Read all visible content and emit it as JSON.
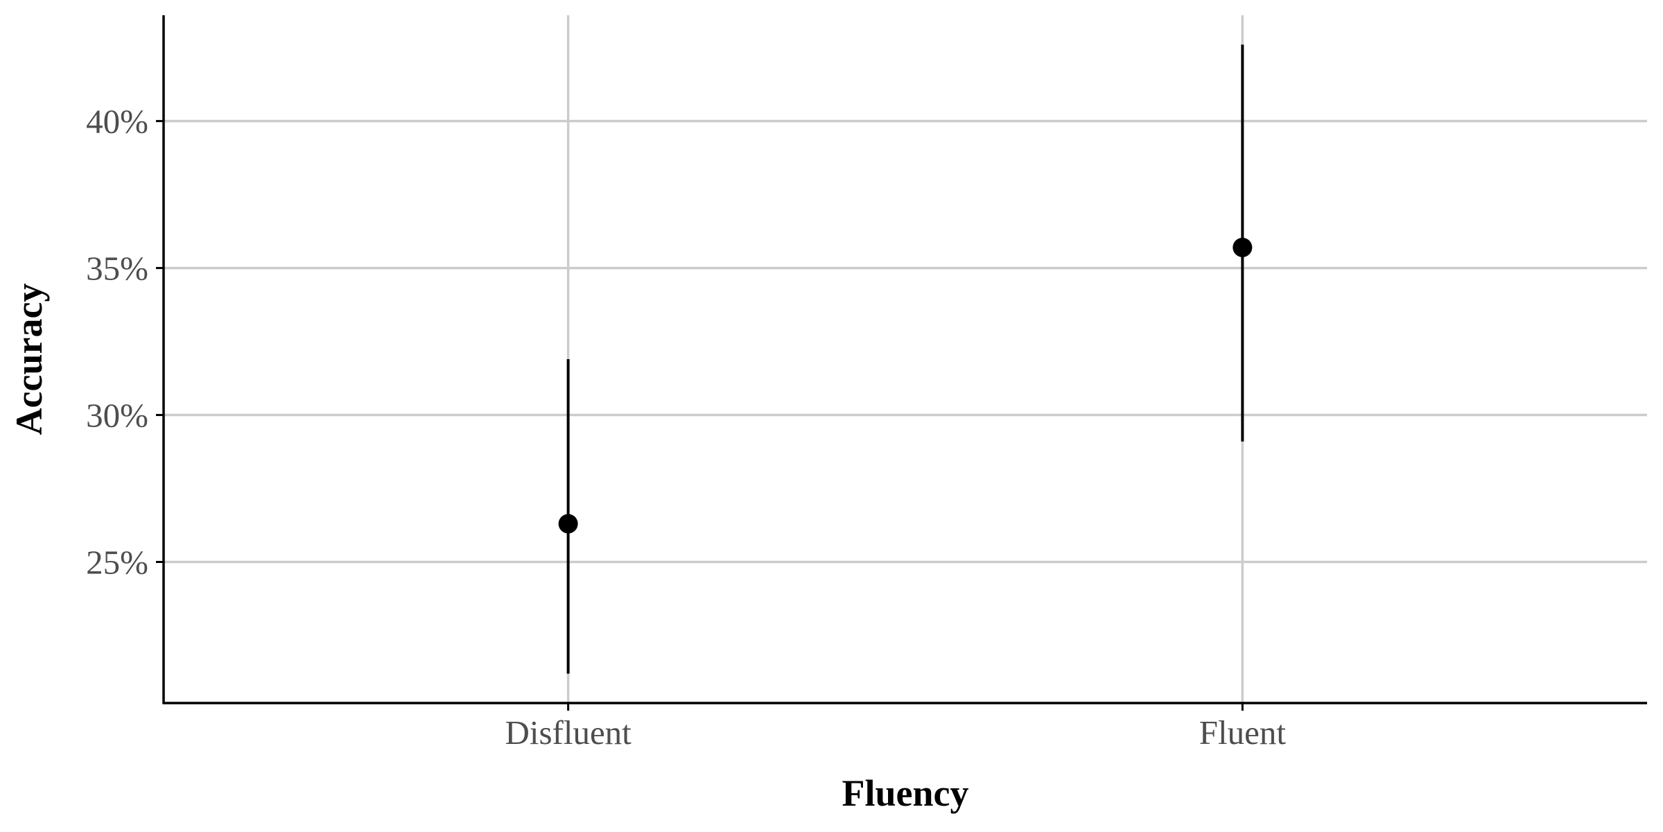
{
  "chart_data": {
    "type": "scatter",
    "title": "",
    "xlabel": "Fluency",
    "ylabel": "Accuracy",
    "categories": [
      "Disfluent",
      "Fluent"
    ],
    "series": [
      {
        "points": [
          {
            "x": "Disfluent",
            "y": 26.3,
            "ymin": 21.2,
            "ymax": 31.9
          },
          {
            "x": "Fluent",
            "y": 35.7,
            "ymin": 29.1,
            "ymax": 42.6
          }
        ]
      }
    ],
    "y_ticks": [
      25,
      30,
      35,
      40
    ],
    "y_tick_labels": [
      "25%",
      "30%",
      "35%",
      "40%"
    ],
    "ylim": [
      20.2,
      43.6
    ],
    "y_unit": "%",
    "grid": true,
    "legend": "none",
    "colors": {
      "point": "#000000",
      "errorbar": "#000000",
      "grid": "#cccccc",
      "axis": "#000000",
      "tick_label": "#4d4d4d",
      "background": "#ffffff"
    }
  }
}
